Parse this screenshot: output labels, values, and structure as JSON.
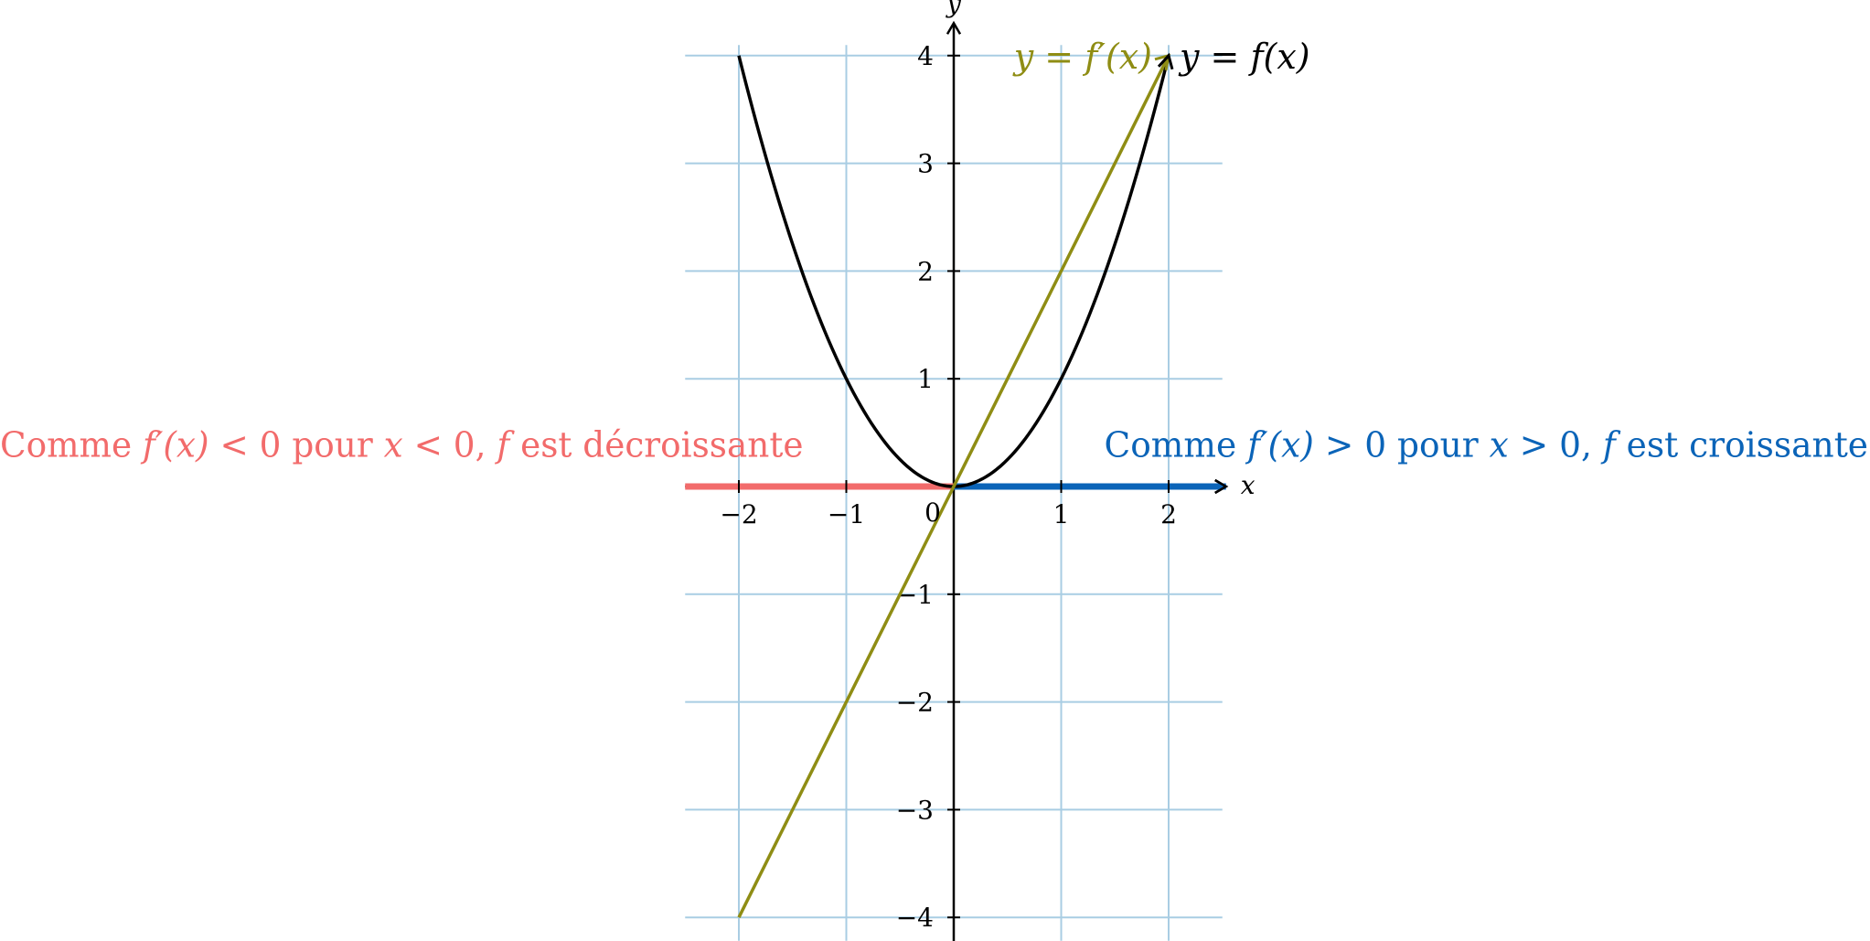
{
  "chart_data": {
    "type": "line",
    "title": "",
    "xlabel": "x",
    "ylabel": "y",
    "xlim": [
      -2.5,
      2.5
    ],
    "ylim": [
      -4.2,
      4.2
    ],
    "grid": true,
    "x_ticks": [
      {
        "value": -2,
        "label": "−2"
      },
      {
        "value": -1,
        "label": "−1"
      },
      {
        "value": 1,
        "label": "1"
      },
      {
        "value": 2,
        "label": "2"
      }
    ],
    "y_ticks": [
      {
        "value": -4,
        "label": "−4"
      },
      {
        "value": -3,
        "label": "−3"
      },
      {
        "value": -2,
        "label": "−2"
      },
      {
        "value": -1,
        "label": "−1"
      },
      {
        "value": 1,
        "label": "1"
      },
      {
        "value": 2,
        "label": "2"
      },
      {
        "value": 3,
        "label": "3"
      },
      {
        "value": 4,
        "label": "4"
      }
    ],
    "origin_label": "0",
    "series": [
      {
        "name": "y = f(x)",
        "color": "#000000",
        "x": [
          -2,
          -1.5,
          -1,
          -0.5,
          0,
          0.5,
          1,
          1.5,
          2
        ],
        "y": [
          4,
          2.25,
          1,
          0.25,
          0,
          0.25,
          1,
          2.25,
          4
        ]
      },
      {
        "name": "y = f′(x)",
        "color": "#8f8d14",
        "x": [
          -2,
          2
        ],
        "y": [
          -4,
          4
        ]
      }
    ],
    "sign_segments": [
      {
        "x_range": [
          -2.5,
          0
        ],
        "color": "#f26b6b"
      },
      {
        "x_range": [
          0,
          2.5
        ],
        "color": "#0b64b8"
      }
    ],
    "annotations": [
      {
        "id": "left",
        "color": "#f26b6b",
        "parts": [
          {
            "t": "Comme "
          },
          {
            "t": "f′(x)",
            "m": true
          },
          {
            "t": " < 0 pour "
          },
          {
            "t": "x",
            "m": true
          },
          {
            "t": " < 0, "
          },
          {
            "t": "f",
            "m": true
          },
          {
            "t": " est décroissante"
          }
        ]
      },
      {
        "id": "right",
        "color": "#0b64b8",
        "parts": [
          {
            "t": "Comme "
          },
          {
            "t": "f′(x)",
            "m": true
          },
          {
            "t": " > 0 pour "
          },
          {
            "t": "x",
            "m": true
          },
          {
            "t": " > 0, "
          },
          {
            "t": "f",
            "m": true
          },
          {
            "t": " est croissante"
          }
        ]
      }
    ]
  }
}
